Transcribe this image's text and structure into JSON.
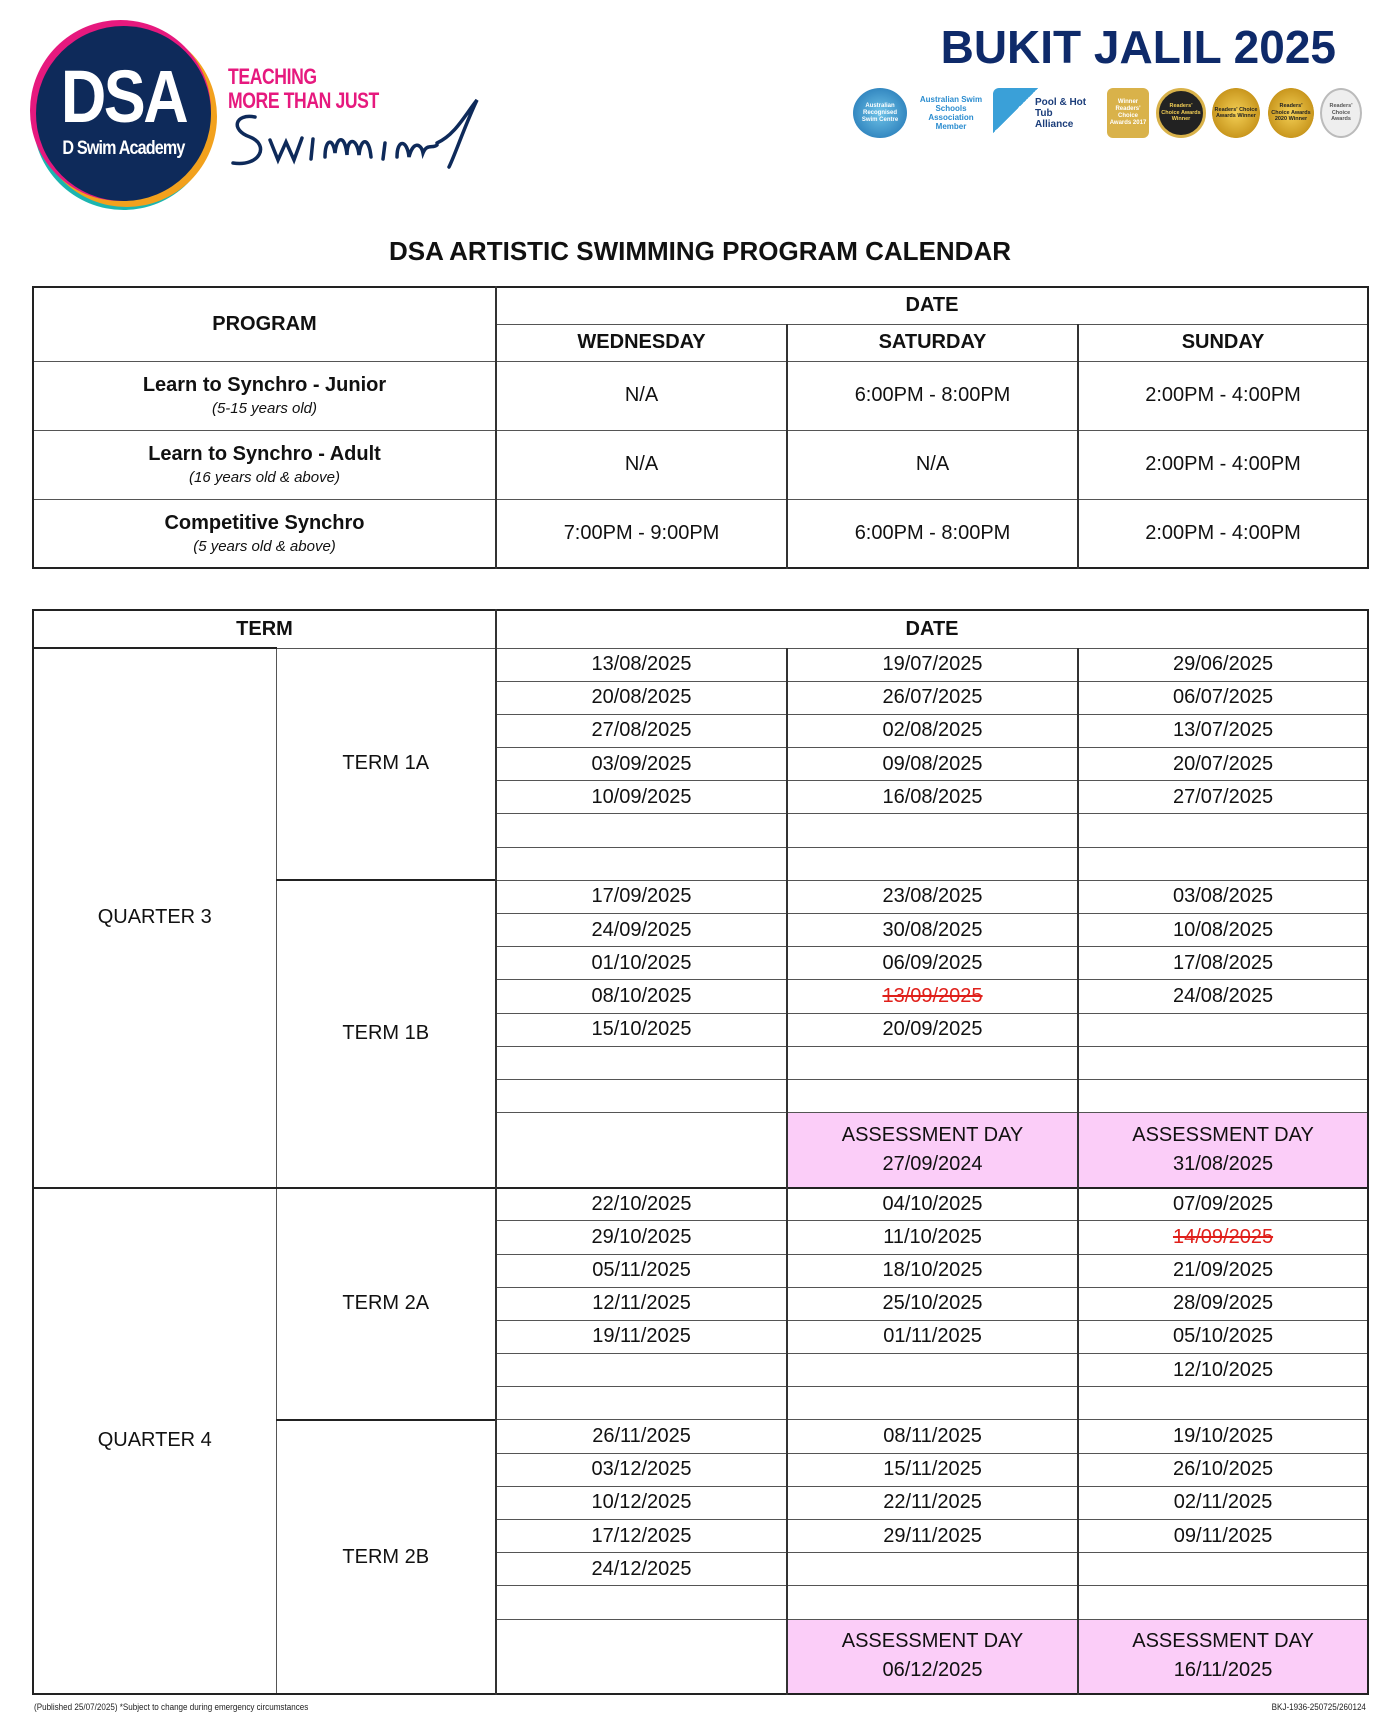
{
  "logo": {
    "mark": "DSA",
    "name": "D Swim Academy",
    "tagline_1": "TEACHING",
    "tagline_2": "MORE THAN JUST",
    "script_word": "Swimming",
    "colors": {
      "navy": "#0e2a5a",
      "pink": "#e6197e",
      "orange": "#f2a11d",
      "teal": "#1cb5b0"
    }
  },
  "header": {
    "title": "BUKIT JALIL 2025",
    "badges": [
      "Australian Recognised Swim Centre",
      "Australian Swim Schools Association Member",
      "Pool & Hot Tub Alliance",
      "Winner Readers' Choice Awards 2017",
      "Readers' Choice Awards Winner",
      "Readers' Choice Awards Winner",
      "Readers' Choice Awards 2020 Winner",
      "Readers' Choice Awards"
    ]
  },
  "document_title": "DSA ARTISTIC SWIMMING PROGRAM CALENDAR",
  "program_table": {
    "program_header": "PROGRAM",
    "date_header": "DATE",
    "days": [
      "WEDNESDAY",
      "SATURDAY",
      "SUNDAY"
    ],
    "rows": [
      {
        "name": "Learn to Synchro - Junior",
        "age": "(5-15 years old)",
        "times": [
          "N/A",
          "6:00PM - 8:00PM",
          "2:00PM - 4:00PM"
        ]
      },
      {
        "name": "Learn to Synchro - Adult",
        "age": "(16 years old & above)",
        "times": [
          "N/A",
          "N/A",
          "2:00PM - 4:00PM"
        ]
      },
      {
        "name": "Competitive Synchro",
        "age": "(5 years old & above)",
        "times": [
          "7:00PM - 9:00PM",
          "6:00PM - 8:00PM",
          "2:00PM - 4:00PM"
        ]
      }
    ]
  },
  "term_table": {
    "term_header": "TERM",
    "date_header": "DATE",
    "assessment_label": "ASSESSMENT DAY",
    "cancelled": [
      "13/09/2025",
      "14/09/2025"
    ],
    "strike_color": "#e0201b",
    "assessment_color": "#fbcdf8",
    "quarters": [
      {
        "name": "QUARTER 3",
        "terms": [
          {
            "name": "TERM 1A",
            "rows": [
              [
                "13/08/2025",
                "19/07/2025",
                "29/06/2025"
              ],
              [
                "20/08/2025",
                "26/07/2025",
                "06/07/2025"
              ],
              [
                "27/08/2025",
                "02/08/2025",
                "13/07/2025"
              ],
              [
                "03/09/2025",
                "09/08/2025",
                "20/07/2025"
              ],
              [
                "10/09/2025",
                "16/08/2025",
                "27/07/2025"
              ],
              [
                "",
                "",
                ""
              ],
              [
                "",
                "",
                ""
              ]
            ]
          },
          {
            "name": "TERM 1B",
            "rows": [
              [
                "17/09/2025",
                "23/08/2025",
                "03/08/2025"
              ],
              [
                "24/09/2025",
                "30/08/2025",
                "10/08/2025"
              ],
              [
                "01/10/2025",
                "06/09/2025",
                "17/08/2025"
              ],
              [
                "08/10/2025",
                "13/09/2025",
                "24/08/2025"
              ],
              [
                "15/10/2025",
                "20/09/2025",
                ""
              ],
              [
                "",
                "",
                ""
              ],
              [
                "",
                "",
                ""
              ]
            ],
            "assessment": [
              "",
              "27/09/2024",
              "31/08/2025"
            ]
          }
        ]
      },
      {
        "name": "QUARTER 4",
        "terms": [
          {
            "name": "TERM 2A",
            "rows": [
              [
                "22/10/2025",
                "04/10/2025",
                "07/09/2025"
              ],
              [
                "29/10/2025",
                "11/10/2025",
                "14/09/2025"
              ],
              [
                "05/11/2025",
                "18/10/2025",
                "21/09/2025"
              ],
              [
                "12/11/2025",
                "25/10/2025",
                "28/09/2025"
              ],
              [
                "19/11/2025",
                "01/11/2025",
                "05/10/2025"
              ],
              [
                "",
                "",
                "12/10/2025"
              ],
              [
                "",
                "",
                ""
              ]
            ]
          },
          {
            "name": "TERM 2B",
            "rows": [
              [
                "26/11/2025",
                "08/11/2025",
                "19/10/2025"
              ],
              [
                "03/12/2025",
                "15/11/2025",
                "26/10/2025"
              ],
              [
                "10/12/2025",
                "22/11/2025",
                "02/11/2025"
              ],
              [
                "17/12/2025",
                "29/11/2025",
                "09/11/2025"
              ],
              [
                "24/12/2025",
                "",
                ""
              ],
              [
                "",
                "",
                ""
              ]
            ],
            "assessment": [
              "",
              "06/12/2025",
              "16/11/2025"
            ]
          }
        ]
      }
    ]
  },
  "footer": {
    "left": "(Published 25/07/2025) *Subject to change during emergency circumstances",
    "right": "BKJ-1936-250725/260124"
  }
}
